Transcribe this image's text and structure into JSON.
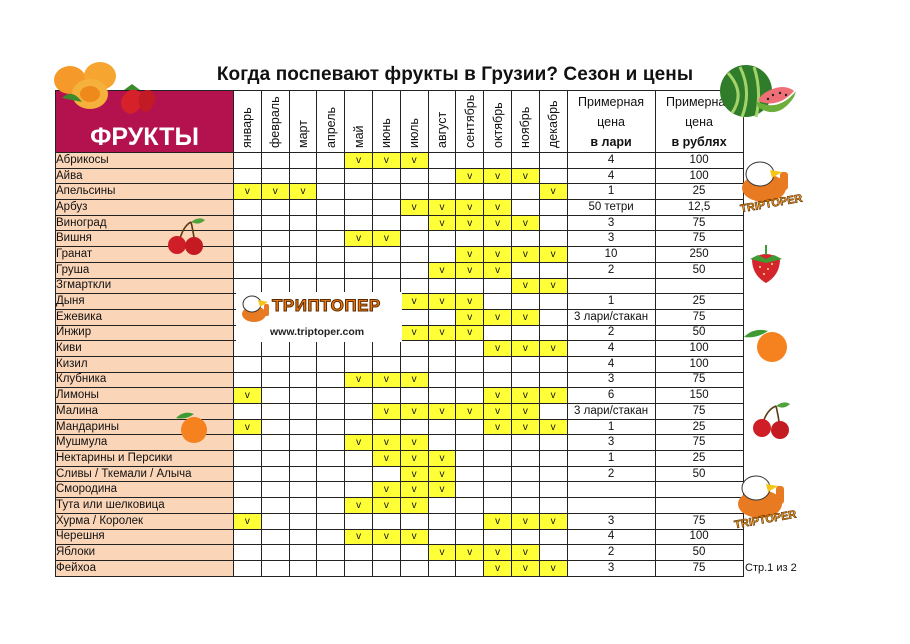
{
  "title": "Когда поспевают фрукты в Грузии? Сезон и цены",
  "header": {
    "fruits_label": "ФРУКТЫ",
    "months": [
      "январь",
      "февраль",
      "март",
      "апрель",
      "май",
      "июнь",
      "июль",
      "август",
      "сентябрь",
      "октябрь",
      "ноябрь",
      "декабрь"
    ],
    "price_lari": {
      "line1": "Примерная",
      "line2": "цена",
      "line3": "в лари"
    },
    "price_rub": {
      "line1": "Примерная",
      "line2": "цена",
      "line3": "в рублях"
    }
  },
  "check_mark": "v",
  "colors": {
    "header_bg": "#b3124f",
    "name_bg": "#fbd5b8",
    "season_bg": "#ffff38"
  },
  "rows": [
    {
      "name": "Абрикосы",
      "months": [
        5,
        6,
        7
      ],
      "lari": "4",
      "rub": "100"
    },
    {
      "name": "Айва",
      "months": [
        9,
        10,
        11
      ],
      "lari": "4",
      "rub": "100"
    },
    {
      "name": "Апельсины",
      "months": [
        1,
        2,
        3,
        12
      ],
      "lari": "1",
      "rub": "25"
    },
    {
      "name": "Арбуз",
      "months": [
        7,
        8,
        9,
        10
      ],
      "lari": "50 тетри",
      "rub": "12,5"
    },
    {
      "name": "Виноград",
      "months": [
        8,
        9,
        10,
        11
      ],
      "lari": "3",
      "rub": "75"
    },
    {
      "name": "Вишня",
      "months": [
        5,
        6
      ],
      "lari": "3",
      "rub": "75"
    },
    {
      "name": "Гранат",
      "months": [
        9,
        10,
        11,
        12
      ],
      "lari": "10",
      "rub": "250"
    },
    {
      "name": "Груша",
      "months": [
        8,
        9,
        10
      ],
      "lari": "2",
      "rub": "50"
    },
    {
      "name": "Згмарткли",
      "months": [
        11,
        12
      ],
      "lari": "",
      "rub": ""
    },
    {
      "name": "Дыня",
      "months": [
        7,
        8,
        9
      ],
      "lari": "1",
      "rub": "25"
    },
    {
      "name": "Ежевика",
      "months": [
        9,
        10,
        11
      ],
      "lari": "3 лари/стакан",
      "rub": "75"
    },
    {
      "name": "Инжир",
      "months": [
        7,
        8,
        9
      ],
      "lari": "2",
      "rub": "50"
    },
    {
      "name": "Киви",
      "months": [
        10,
        11,
        12
      ],
      "lari": "4",
      "rub": "100"
    },
    {
      "name": "Кизил",
      "months": [],
      "lari": "4",
      "rub": "100"
    },
    {
      "name": "Клубника",
      "months": [
        5,
        6,
        7
      ],
      "lari": "3",
      "rub": "75"
    },
    {
      "name": "Лимоны",
      "months": [
        1,
        10,
        11,
        12
      ],
      "lari": "6",
      "rub": "150"
    },
    {
      "name": "Малина",
      "months": [
        6,
        7,
        8,
        9,
        10,
        11
      ],
      "lari": "3 лари/стакан",
      "rub": "75"
    },
    {
      "name": "Мандарины",
      "months": [
        1,
        10,
        11,
        12
      ],
      "lari": "1",
      "rub": "25"
    },
    {
      "name": "Мушмула",
      "months": [
        5,
        6,
        7
      ],
      "lari": "3",
      "rub": "75"
    },
    {
      "name": "Нектарины и Персики",
      "months": [
        6,
        7,
        8
      ],
      "lari": "1",
      "rub": "25"
    },
    {
      "name": "Сливы / Ткемали / Алыча",
      "months": [
        7,
        8
      ],
      "lari": "2",
      "rub": "50"
    },
    {
      "name": "Смородина",
      "months": [
        6,
        7,
        8
      ],
      "lari": "",
      "rub": ""
    },
    {
      "name": "Тута или шелковица",
      "months": [
        5,
        6,
        7
      ],
      "lari": "",
      "rub": ""
    },
    {
      "name": "Хурма / Королек",
      "months": [
        1,
        10,
        11,
        12
      ],
      "lari": "3",
      "rub": "75"
    },
    {
      "name": "Черешня",
      "months": [
        5,
        6,
        7
      ],
      "lari": "4",
      "rub": "100"
    },
    {
      "name": "Яблоки",
      "months": [
        8,
        9,
        10,
        11
      ],
      "lari": "2",
      "rub": "50"
    },
    {
      "name": "Фейхоа",
      "months": [
        10,
        11,
        12
      ],
      "lari": "3",
      "rub": "75"
    }
  ],
  "logo": {
    "word": "ТРИПТОПЕР",
    "url": "www.triptoper.com",
    "sticker_text": "TRIPTOPER"
  },
  "footer": {
    "page": "Стр.1 из 2"
  }
}
